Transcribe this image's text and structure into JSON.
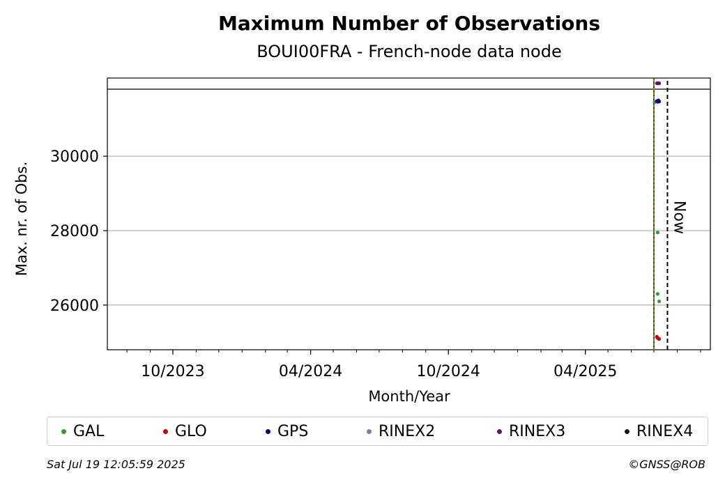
{
  "chart_data": {
    "type": "scatter",
    "title": "Maximum Number of Observations",
    "subtitle": "BOUI00FRA - French-node data node",
    "xlabel": "Month/Year",
    "ylabel": "Max. nr. of Obs.",
    "x_range": [
      "2023-07-06",
      "2025-09-14"
    ],
    "ylim": [
      24800,
      32100
    ],
    "x_ticks": [
      {
        "date": "2023-10-01",
        "label": "10/2023"
      },
      {
        "date": "2024-04-01",
        "label": "04/2024"
      },
      {
        "date": "2024-10-01",
        "label": "10/2024"
      },
      {
        "date": "2025-04-01",
        "label": "04/2025"
      }
    ],
    "y_ticks": [
      {
        "value": 26000,
        "label": "26000"
      },
      {
        "value": 28000,
        "label": "28000"
      },
      {
        "value": 30000,
        "label": "30000"
      }
    ],
    "y_reference_line": 31800,
    "grid": "y",
    "vlines": [
      {
        "date": "2025-07-01",
        "style": "solid",
        "color": "#2ca02c"
      },
      {
        "date": "2025-07-01",
        "style": "dotted",
        "color": "#cc0000"
      },
      {
        "date": "2025-07-19",
        "style": "dashed",
        "color": "#000000",
        "label": "Now"
      }
    ],
    "series": [
      {
        "name": "GAL",
        "color": "#2ca02c",
        "points": [
          {
            "date": "2025-07-02",
            "value": 31450
          },
          {
            "date": "2025-07-06",
            "value": 27950
          },
          {
            "date": "2025-07-06",
            "value": 26300
          },
          {
            "date": "2025-07-08",
            "value": 26100
          }
        ]
      },
      {
        "name": "GLO",
        "color": "#cc0000",
        "points": [
          {
            "date": "2025-07-05",
            "value": 25150
          },
          {
            "date": "2025-07-06",
            "value": 25120
          },
          {
            "date": "2025-07-07",
            "value": 25100
          },
          {
            "date": "2025-07-08",
            "value": 25090
          }
        ]
      },
      {
        "name": "GPS",
        "color": "#00008b",
        "points": [
          {
            "date": "2025-07-05",
            "value": 31480
          },
          {
            "date": "2025-07-06",
            "value": 31460
          },
          {
            "date": "2025-07-07",
            "value": 31500
          },
          {
            "date": "2025-07-08",
            "value": 31470
          }
        ]
      },
      {
        "name": "RINEX2",
        "color": "#7b7bc0",
        "points": []
      },
      {
        "name": "RINEX3",
        "color": "#6a0f6a",
        "points": [
          {
            "date": "2025-07-05",
            "value": 31960
          },
          {
            "date": "2025-07-06",
            "value": 31960
          },
          {
            "date": "2025-07-07",
            "value": 31960
          },
          {
            "date": "2025-07-08",
            "value": 31960
          }
        ]
      },
      {
        "name": "RINEX4",
        "color": "#2b0a1f",
        "points": []
      }
    ],
    "legend_placement": "bottom"
  },
  "footer": {
    "timestamp": "Sat Jul 19 12:05:59 2025",
    "copyright": "©GNSS@ROB"
  }
}
